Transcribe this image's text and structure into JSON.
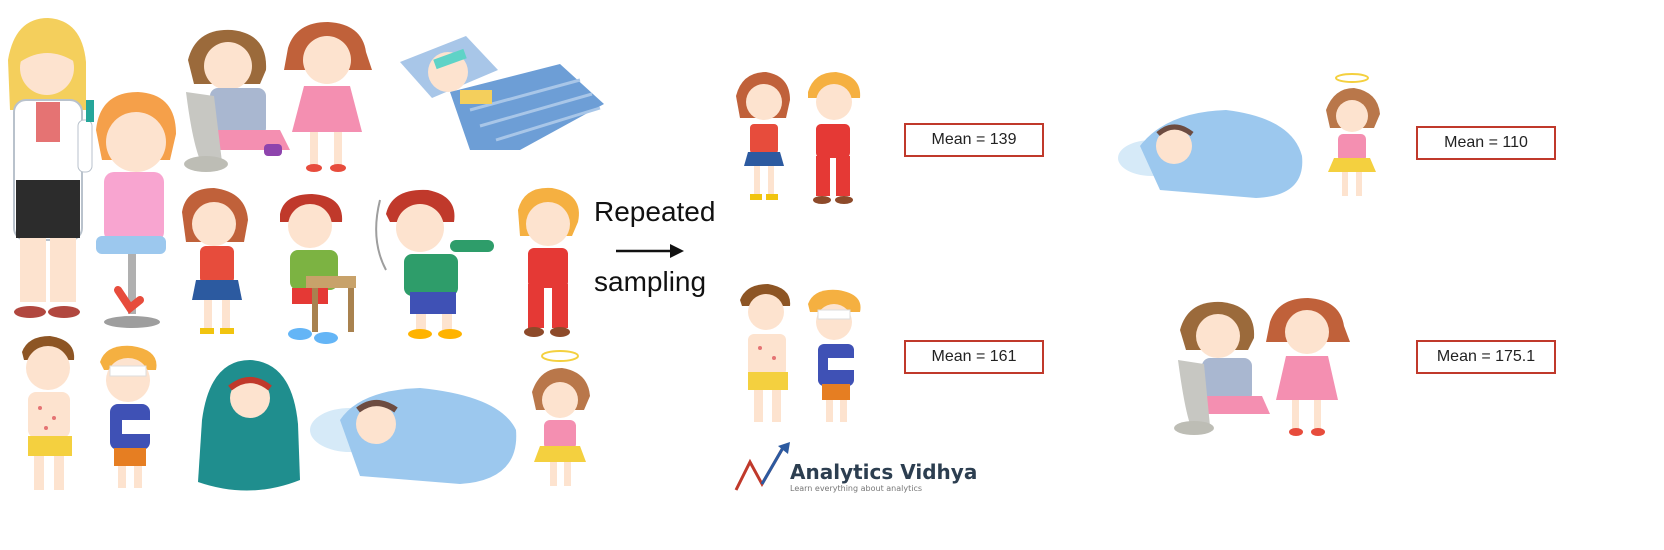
{
  "process": {
    "line1": "Repeated",
    "line2": "sampling"
  },
  "samples": [
    {
      "mean_label": "Mean = 139"
    },
    {
      "mean_label": "Mean = 110"
    },
    {
      "mean_label": "Mean = 161"
    },
    {
      "mean_label": "Mean = 175.1"
    }
  ],
  "logo": {
    "title": "Analytics Vidhya",
    "tagline": "Learn everything about analytics"
  },
  "colors": {
    "box_border": "#c0392b",
    "blanket": "#9cc8ee",
    "teal_blanket": "#1f8e8e"
  }
}
